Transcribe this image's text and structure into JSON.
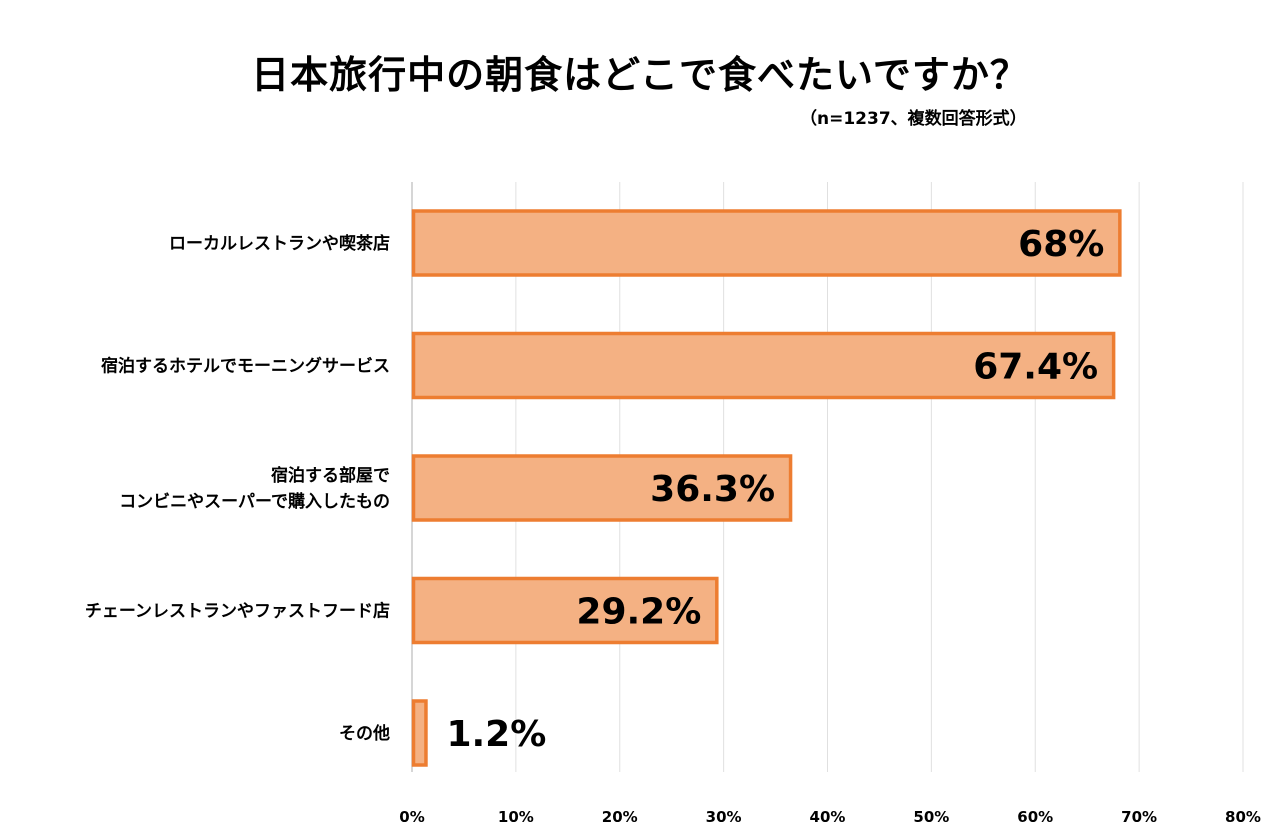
{
  "chart_data": {
    "type": "bar",
    "orientation": "horizontal",
    "title": "日本旅行中の朝食はどこで食べたいですか？",
    "subtitle": "（n=1237、複数回答形式）",
    "xlabel": "",
    "ylabel": "",
    "xlim": [
      0,
      80
    ],
    "ticks": [
      0,
      10,
      20,
      30,
      40,
      50,
      60,
      70,
      80
    ],
    "tick_labels": [
      "0%",
      "10%",
      "20%",
      "30%",
      "40%",
      "50%",
      "60%",
      "70%",
      "80%"
    ],
    "grid": true,
    "categories": [
      [
        "ローカルレストランや喫茶店"
      ],
      [
        "宿泊するホテルでモーニングサービス"
      ],
      [
        "宿泊する部屋で",
        "コンビニやスーパーで購入したもの"
      ],
      [
        "チェーンレストランやファストフード店"
      ],
      [
        "その他"
      ]
    ],
    "values": [
      68,
      67.4,
      36.3,
      29.2,
      1.2
    ],
    "data_labels": [
      "68%",
      "67.4%",
      "36.3%",
      "29.2%",
      "1.2%"
    ],
    "colors": {
      "bar_fill": "#F4B183",
      "bar_stroke": "#ED7D31",
      "grid": "#E0E0E0",
      "axis": "#C8C8C8"
    }
  }
}
